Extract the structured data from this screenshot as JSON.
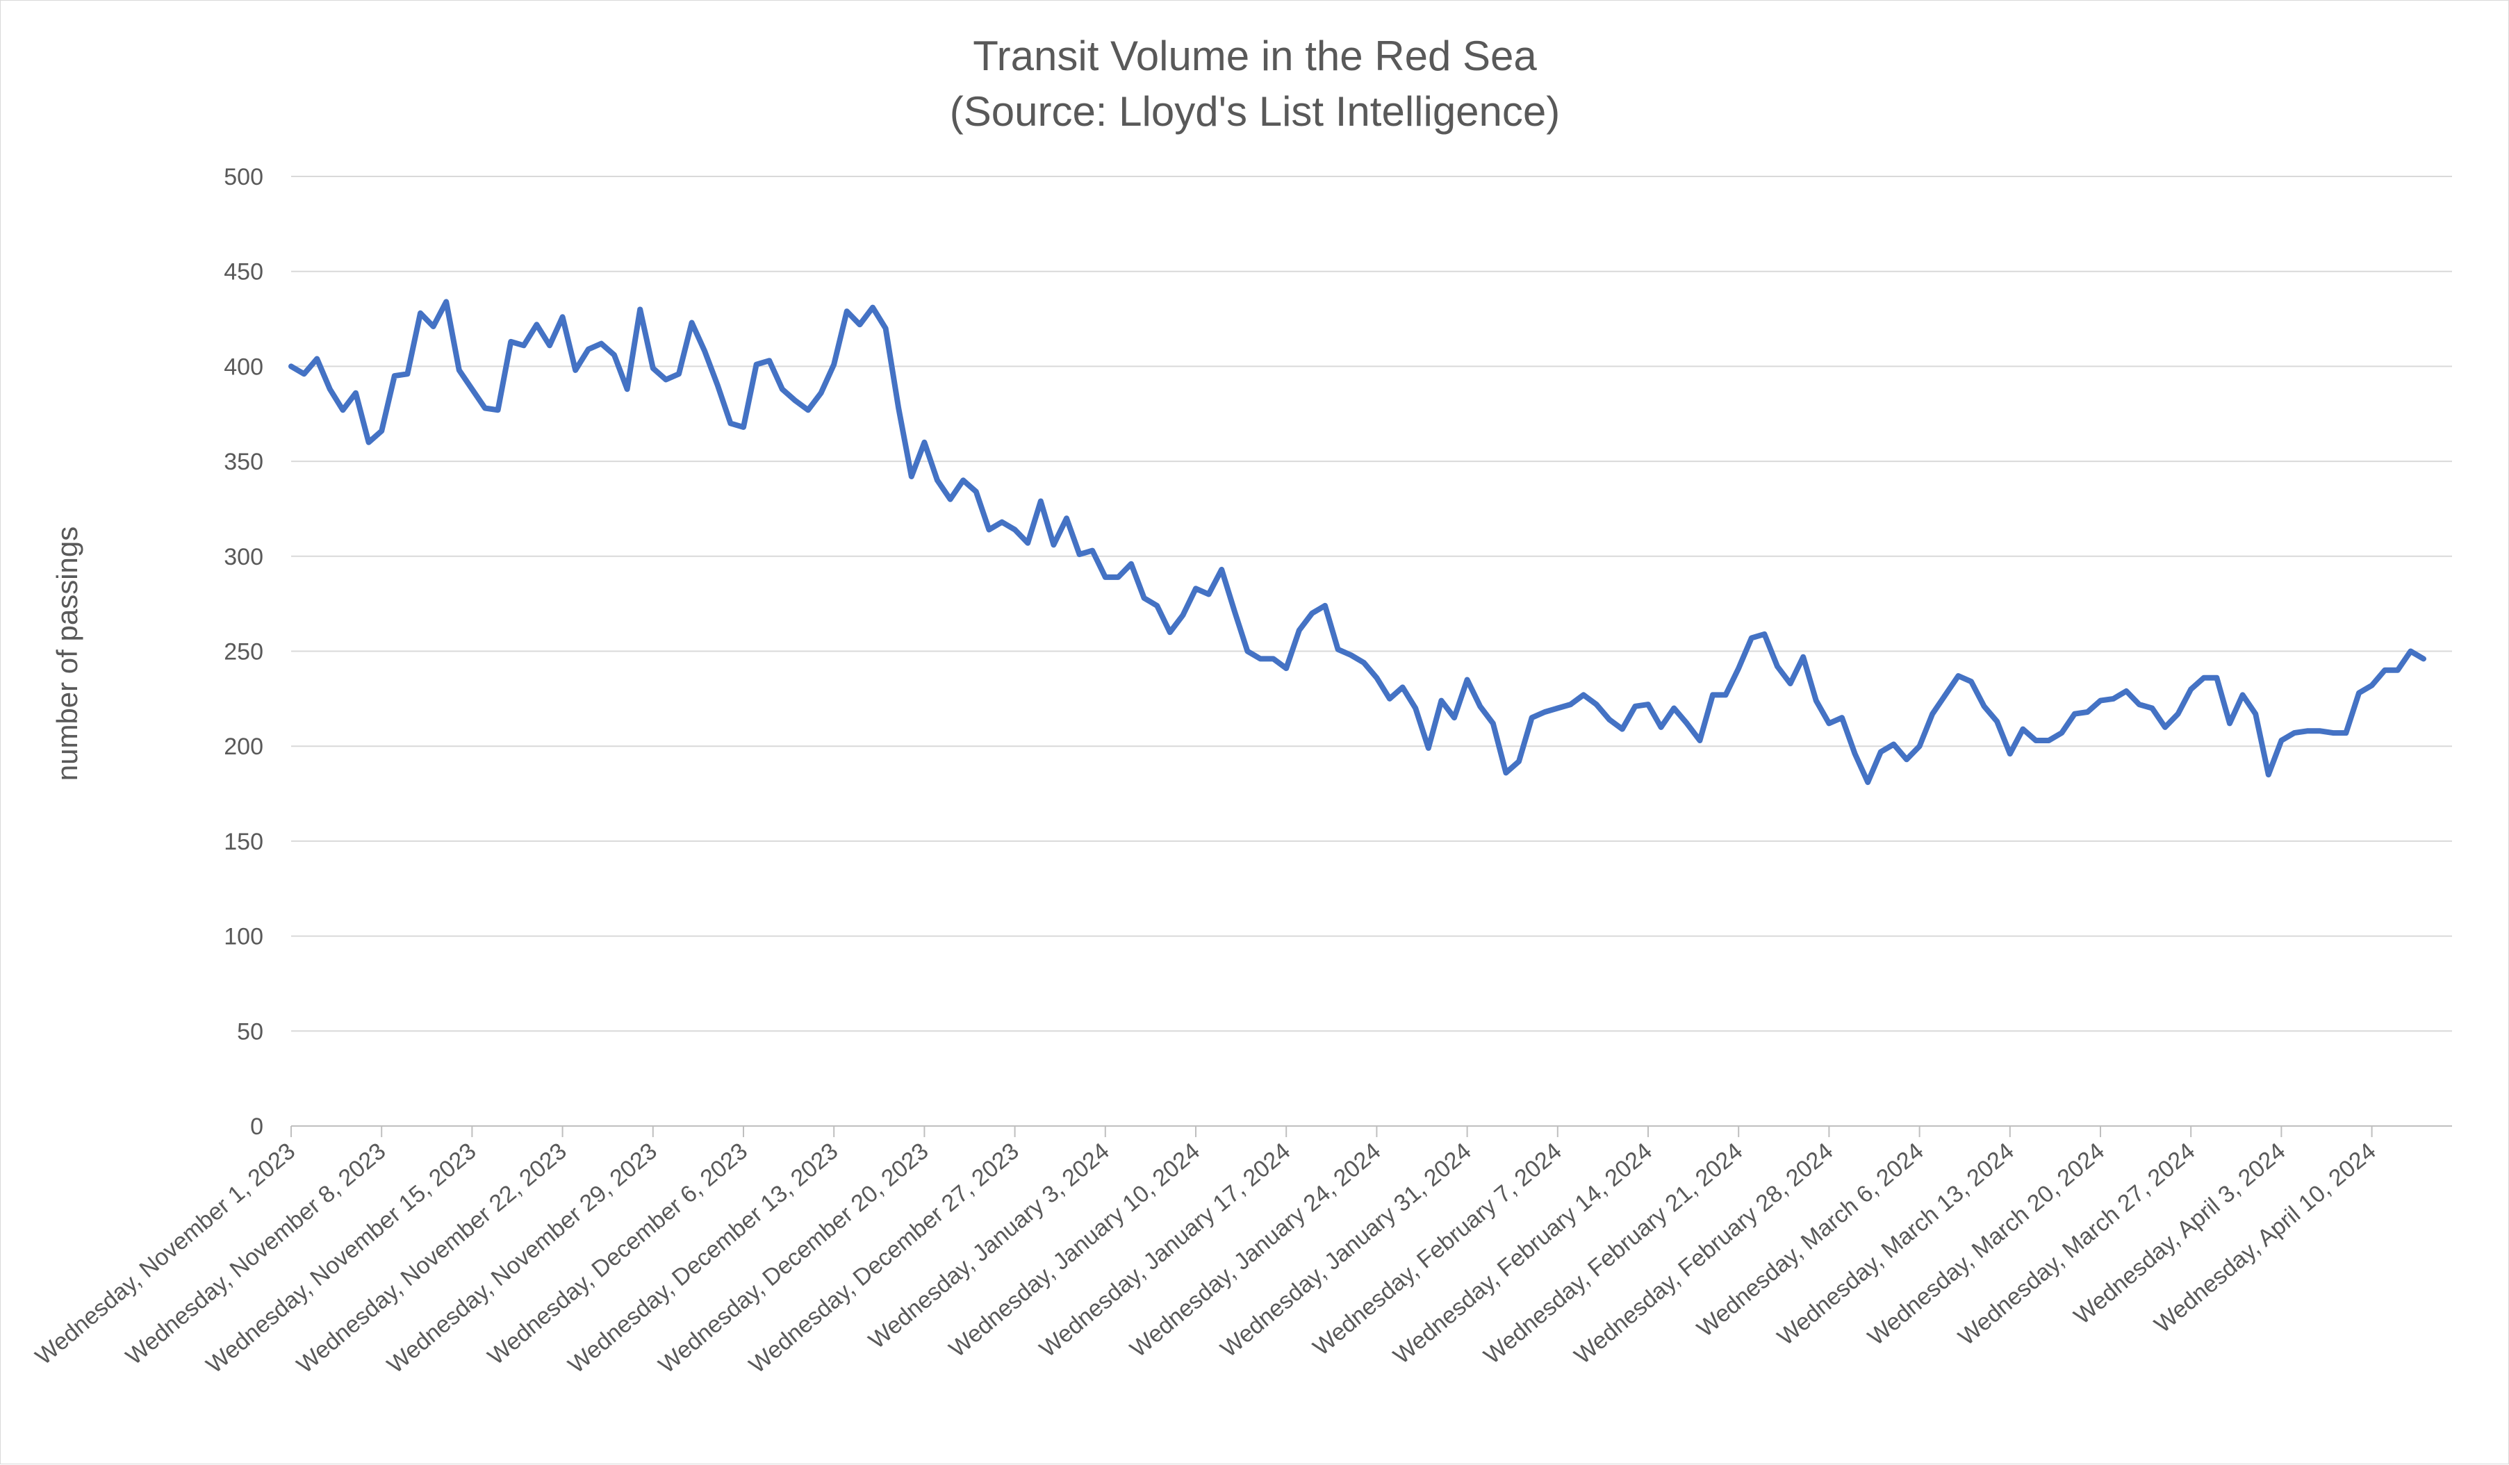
{
  "chart_data": {
    "type": "line",
    "title": "Transit Volume in the Red Sea",
    "subtitle": "(Source: Lloyd's List Intelligence)",
    "xlabel": "",
    "ylabel": "number of passings",
    "ylim": [
      0,
      500
    ],
    "y_ticks": [
      0,
      50,
      100,
      150,
      200,
      250,
      300,
      350,
      400,
      450,
      500
    ],
    "grid": true,
    "legend": "none",
    "x_start": "2023-11-01",
    "x_end": "2024-04-15",
    "x_tick_dates": [
      "2023-11-01",
      "2023-11-08",
      "2023-11-15",
      "2023-11-22",
      "2023-11-29",
      "2023-12-06",
      "2023-12-13",
      "2023-12-20",
      "2023-12-27",
      "2024-01-03",
      "2024-01-10",
      "2024-01-17",
      "2024-01-24",
      "2024-01-31",
      "2024-02-07",
      "2024-02-14",
      "2024-02-21",
      "2024-02-28",
      "2024-03-06",
      "2024-03-13",
      "2024-03-20",
      "2024-03-27",
      "2024-04-03",
      "2024-04-10"
    ],
    "x_tick_labels": [
      "Wednesday, November 1, 2023",
      "Wednesday, November 8, 2023",
      "Wednesday, November 15, 2023",
      "Wednesday, November 22, 2023",
      "Wednesday, November 29, 2023",
      "Wednesday, December 6, 2023",
      "Wednesday, December 13, 2023",
      "Wednesday, December 20, 2023",
      "Wednesday, December 27, 2023",
      "Wednesday, January 3, 2024",
      "Wednesday, January 10, 2024",
      "Wednesday, January 17, 2024",
      "Wednesday, January 24, 2024",
      "Wednesday, January 31, 2024",
      "Wednesday, February 7, 2024",
      "Wednesday, February 14, 2024",
      "Wednesday, February 21, 2024",
      "Wednesday, February 28, 2024",
      "Wednesday, March 6, 2024",
      "Wednesday, March 13, 2024",
      "Wednesday, March 20, 2024",
      "Wednesday, March 27, 2024",
      "Wednesday, April 3, 2024",
      "Wednesday, April 10, 2024"
    ],
    "series": [
      {
        "name": "",
        "color": "#4472c4",
        "points": [
          [
            "2023-11-01",
            400
          ],
          [
            "2023-11-02",
            396
          ],
          [
            "2023-11-03",
            404
          ],
          [
            "2023-11-04",
            388
          ],
          [
            "2023-11-05",
            377
          ],
          [
            "2023-11-06",
            386
          ],
          [
            "2023-11-07",
            360
          ],
          [
            "2023-11-08",
            366
          ],
          [
            "2023-11-09",
            395
          ],
          [
            "2023-11-10",
            396
          ],
          [
            "2023-11-11",
            428
          ],
          [
            "2023-11-12",
            421
          ],
          [
            "2023-11-13",
            434
          ],
          [
            "2023-11-14",
            398
          ],
          [
            "2023-11-15",
            388
          ],
          [
            "2023-11-16",
            378
          ],
          [
            "2023-11-17",
            377
          ],
          [
            "2023-11-18",
            413
          ],
          [
            "2023-11-19",
            411
          ],
          [
            "2023-11-20",
            422
          ],
          [
            "2023-11-21",
            411
          ],
          [
            "2023-11-22",
            426
          ],
          [
            "2023-11-23",
            398
          ],
          [
            "2023-11-24",
            409
          ],
          [
            "2023-11-25",
            412
          ],
          [
            "2023-11-26",
            406
          ],
          [
            "2023-11-27",
            388
          ],
          [
            "2023-11-28",
            430
          ],
          [
            "2023-11-29",
            399
          ],
          [
            "2023-11-30",
            393
          ],
          [
            "2023-12-01",
            396
          ],
          [
            "2023-12-02",
            423
          ],
          [
            "2023-12-03",
            408
          ],
          [
            "2023-12-04",
            390
          ],
          [
            "2023-12-05",
            370
          ],
          [
            "2023-12-06",
            368
          ],
          [
            "2023-12-07",
            401
          ],
          [
            "2023-12-08",
            403
          ],
          [
            "2023-12-09",
            388
          ],
          [
            "2023-12-10",
            382
          ],
          [
            "2023-12-11",
            377
          ],
          [
            "2023-12-12",
            386
          ],
          [
            "2023-12-13",
            401
          ],
          [
            "2023-12-14",
            429
          ],
          [
            "2023-12-15",
            422
          ],
          [
            "2023-12-16",
            431
          ],
          [
            "2023-12-17",
            420
          ],
          [
            "2023-12-18",
            378
          ],
          [
            "2023-12-19",
            342
          ],
          [
            "2023-12-20",
            360
          ],
          [
            "2023-12-21",
            340
          ],
          [
            "2023-12-22",
            330
          ],
          [
            "2023-12-23",
            340
          ],
          [
            "2023-12-24",
            334
          ],
          [
            "2023-12-25",
            314
          ],
          [
            "2023-12-26",
            318
          ],
          [
            "2023-12-27",
            314
          ],
          [
            "2023-12-28",
            307
          ],
          [
            "2023-12-29",
            329
          ],
          [
            "2023-12-30",
            306
          ],
          [
            "2023-12-31",
            320
          ],
          [
            "2024-01-01",
            301
          ],
          [
            "2024-01-02",
            303
          ],
          [
            "2024-01-03",
            289
          ],
          [
            "2024-01-04",
            289
          ],
          [
            "2024-01-05",
            296
          ],
          [
            "2024-01-06",
            278
          ],
          [
            "2024-01-07",
            274
          ],
          [
            "2024-01-08",
            260
          ],
          [
            "2024-01-09",
            269
          ],
          [
            "2024-01-10",
            283
          ],
          [
            "2024-01-11",
            280
          ],
          [
            "2024-01-12",
            293
          ],
          [
            "2024-01-13",
            271
          ],
          [
            "2024-01-14",
            250
          ],
          [
            "2024-01-15",
            246
          ],
          [
            "2024-01-16",
            246
          ],
          [
            "2024-01-17",
            241
          ],
          [
            "2024-01-18",
            261
          ],
          [
            "2024-01-19",
            270
          ],
          [
            "2024-01-20",
            274
          ],
          [
            "2024-01-21",
            251
          ],
          [
            "2024-01-22",
            248
          ],
          [
            "2024-01-23",
            244
          ],
          [
            "2024-01-24",
            236
          ],
          [
            "2024-01-25",
            225
          ],
          [
            "2024-01-26",
            231
          ],
          [
            "2024-01-27",
            220
          ],
          [
            "2024-01-28",
            199
          ],
          [
            "2024-01-29",
            224
          ],
          [
            "2024-01-30",
            215
          ],
          [
            "2024-01-31",
            235
          ],
          [
            "2024-02-01",
            221
          ],
          [
            "2024-02-02",
            212
          ],
          [
            "2024-02-03",
            186
          ],
          [
            "2024-02-04",
            192
          ],
          [
            "2024-02-05",
            215
          ],
          [
            "2024-02-06",
            218
          ],
          [
            "2024-02-07",
            220
          ],
          [
            "2024-02-08",
            222
          ],
          [
            "2024-02-09",
            227
          ],
          [
            "2024-02-10",
            222
          ],
          [
            "2024-02-11",
            214
          ],
          [
            "2024-02-12",
            209
          ],
          [
            "2024-02-13",
            221
          ],
          [
            "2024-02-14",
            222
          ],
          [
            "2024-02-15",
            210
          ],
          [
            "2024-02-16",
            220
          ],
          [
            "2024-02-17",
            212
          ],
          [
            "2024-02-18",
            203
          ],
          [
            "2024-02-19",
            227
          ],
          [
            "2024-02-20",
            227
          ],
          [
            "2024-02-21",
            241
          ],
          [
            "2024-02-22",
            257
          ],
          [
            "2024-02-23",
            259
          ],
          [
            "2024-02-24",
            242
          ],
          [
            "2024-02-25",
            233
          ],
          [
            "2024-02-26",
            247
          ],
          [
            "2024-02-27",
            224
          ],
          [
            "2024-02-28",
            212
          ],
          [
            "2024-02-29",
            215
          ],
          [
            "2024-03-01",
            196
          ],
          [
            "2024-03-02",
            181
          ],
          [
            "2024-03-03",
            197
          ],
          [
            "2024-03-04",
            201
          ],
          [
            "2024-03-05",
            193
          ],
          [
            "2024-03-06",
            200
          ],
          [
            "2024-03-07",
            217
          ],
          [
            "2024-03-08",
            227
          ],
          [
            "2024-03-09",
            237
          ],
          [
            "2024-03-10",
            234
          ],
          [
            "2024-03-11",
            221
          ],
          [
            "2024-03-12",
            213
          ],
          [
            "2024-03-13",
            196
          ],
          [
            "2024-03-14",
            209
          ],
          [
            "2024-03-15",
            203
          ],
          [
            "2024-03-16",
            203
          ],
          [
            "2024-03-17",
            207
          ],
          [
            "2024-03-18",
            217
          ],
          [
            "2024-03-19",
            218
          ],
          [
            "2024-03-20",
            224
          ],
          [
            "2024-03-21",
            225
          ],
          [
            "2024-03-22",
            229
          ],
          [
            "2024-03-23",
            222
          ],
          [
            "2024-03-24",
            220
          ],
          [
            "2024-03-25",
            210
          ],
          [
            "2024-03-26",
            217
          ],
          [
            "2024-03-27",
            230
          ],
          [
            "2024-03-28",
            236
          ],
          [
            "2024-03-29",
            236
          ],
          [
            "2024-03-30",
            212
          ],
          [
            "2024-03-31",
            227
          ],
          [
            "2024-04-01",
            217
          ],
          [
            "2024-04-02",
            185
          ],
          [
            "2024-04-03",
            203
          ],
          [
            "2024-04-04",
            207
          ],
          [
            "2024-04-05",
            208
          ],
          [
            "2024-04-06",
            208
          ],
          [
            "2024-04-07",
            207
          ],
          [
            "2024-04-08",
            207
          ],
          [
            "2024-04-09",
            228
          ],
          [
            "2024-04-10",
            232
          ],
          [
            "2024-04-11",
            240
          ],
          [
            "2024-04-12",
            240
          ],
          [
            "2024-04-13",
            250
          ],
          [
            "2024-04-14",
            246
          ]
        ]
      }
    ]
  }
}
